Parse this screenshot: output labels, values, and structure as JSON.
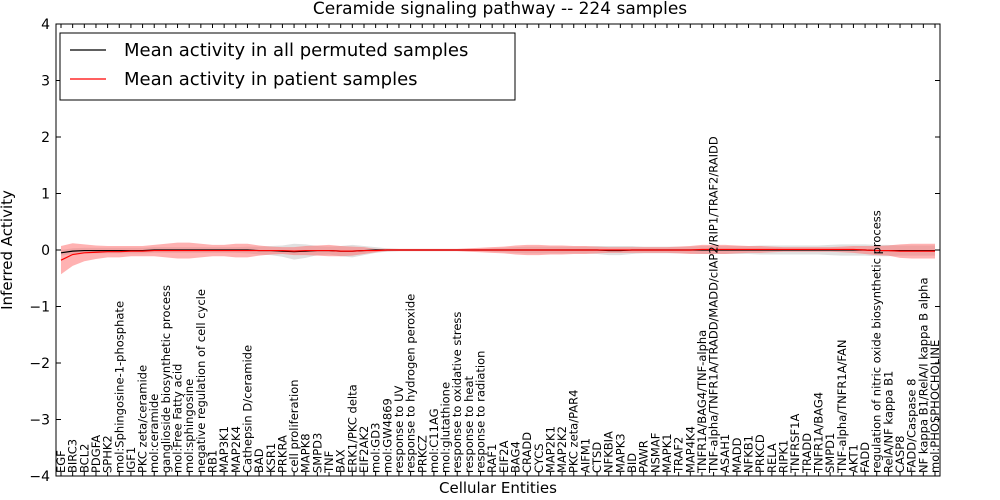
{
  "chart_data": {
    "type": "line",
    "title": "Ceramide signaling pathway -- 224 samples",
    "xlabel": "Cellular Entities",
    "ylabel": "Inferred Activity",
    "ylim": [
      -4,
      4
    ],
    "yticks": [
      -4,
      -3,
      -2,
      -1,
      0,
      1,
      2,
      3,
      4
    ],
    "grid": false,
    "legend_position": "top-left",
    "categories": [
      "EGF",
      "BIRC3",
      "BCL2",
      "PDGFA",
      "SPHK2",
      "mol:Sphingosine-1-phosphate",
      "IGF1",
      "PKC zeta/ceramide",
      "mol:ceramide",
      "ganglioside biosynthetic process",
      "mol:Free Fatty acid",
      "mol:sphingosine",
      "negative regulation of cell cycle",
      "RB1",
      "MAP3K1",
      "MAP2K4",
      "Cathepsin D/ceramide",
      "BAD",
      "KSR1",
      "PRKRA",
      "cell proliferation",
      "MAPK8",
      "SMPD3",
      "TNF",
      "BAX",
      "ERK1/PKC delta",
      "EIF2AK2",
      "mol:GD3",
      "mol:GW4869",
      "response to UV",
      "response to hydrogen peroxide",
      "PRKCZ",
      "mol:C11AG",
      "mol:glutathione",
      "response to oxidative stress",
      "response to heat",
      "response to radiation",
      "RAF1",
      "EIF2A",
      "BAG4",
      "CRADD",
      "CYCS",
      "MAP2K1",
      "MAP2K2",
      "PKC zeta/PAR4",
      "AIFM1",
      "CTSD",
      "NFKBIA",
      "MAPK3",
      "BID",
      "PAWR",
      "NSMAF",
      "MAPK1",
      "TRAF2",
      "MAP4K4",
      "TNFR1A/BAG4/TNF-alpha",
      "TNF-alpha/TNFR1A/TRADD/MADD/cIAP2/RIP1/TRAF2/RAIDD",
      "ASAH1",
      "MADD",
      "NFKB1",
      "PRKCD",
      "RELA",
      "RIPK1",
      "TNFRSF1A",
      "TRADD",
      "TNFR1A/BAG4",
      "SMPD1",
      "TNF-alpha/TNFR1A/FAN",
      "AKT1",
      "FADD",
      "regulation of nitric oxide biosynthetic process",
      "RelA/NF kappa B1",
      "CASP8",
      "FADD/Caspase 8",
      "NF kappa B1/RelA/I kappa B alpha",
      "mol:PHOSPHOCHOLINE"
    ],
    "series": [
      {
        "name": "Mean activity in all permuted samples",
        "color": "#000000",
        "band_color": "#bbbbbb",
        "values": [
          -0.05,
          -0.02,
          -0.01,
          -0.01,
          -0.01,
          -0.01,
          -0.01,
          -0.01,
          0,
          0,
          0,
          0,
          0,
          0,
          0,
          0,
          0,
          -0.01,
          -0.01,
          -0.02,
          -0.03,
          -0.02,
          -0.01,
          -0.01,
          -0.02,
          -0.02,
          -0.01,
          0,
          0,
          0,
          0,
          0,
          0,
          0,
          0,
          0,
          0,
          0,
          0,
          0,
          0,
          0,
          0,
          0,
          0,
          0,
          0,
          -0.01,
          -0.01,
          0,
          0,
          0,
          0,
          0,
          0,
          0,
          0,
          0,
          0,
          0,
          0,
          0,
          0,
          0,
          0,
          0,
          0,
          0,
          0,
          0,
          -0.01,
          -0.01,
          -0.01,
          -0.01,
          -0.01,
          -0.01
        ],
        "spread": [
          0.05,
          0.05,
          0.05,
          0.05,
          0.05,
          0.05,
          0.05,
          0.05,
          0.05,
          0.05,
          0.05,
          0.05,
          0.05,
          0.05,
          0.05,
          0.05,
          0.06,
          0.07,
          0.08,
          0.1,
          0.14,
          0.12,
          0.08,
          0.07,
          0.09,
          0.11,
          0.08,
          0.05,
          0.03,
          0.02,
          0.02,
          0.02,
          0.02,
          0.02,
          0.02,
          0.02,
          0.02,
          0.03,
          0.04,
          0.05,
          0.06,
          0.06,
          0.06,
          0.06,
          0.06,
          0.06,
          0.07,
          0.08,
          0.08,
          0.07,
          0.06,
          0.06,
          0.06,
          0.06,
          0.06,
          0.07,
          0.07,
          0.07,
          0.07,
          0.07,
          0.08,
          0.08,
          0.08,
          0.08,
          0.08,
          0.08,
          0.09,
          0.1,
          0.1,
          0.1,
          0.1,
          0.1,
          0.09,
          0.09,
          0.09,
          0.09
        ]
      },
      {
        "name": "Mean activity in patient samples",
        "color": "#ff0000",
        "band_color": "#ff6666",
        "values": [
          -0.18,
          -0.08,
          -0.05,
          -0.04,
          -0.03,
          -0.03,
          -0.02,
          -0.02,
          -0.01,
          -0.01,
          -0.01,
          -0.01,
          -0.01,
          -0.01,
          -0.01,
          -0.01,
          -0.01,
          -0.01,
          -0.01,
          -0.01,
          -0.02,
          -0.01,
          -0.01,
          -0.01,
          -0.02,
          -0.02,
          -0.01,
          -0.01,
          0,
          0,
          0,
          0,
          0,
          0,
          0,
          0,
          0,
          0,
          0,
          0,
          0,
          0,
          0,
          0,
          0,
          0,
          0,
          0,
          0,
          0,
          0,
          0,
          0,
          0,
          0,
          0.01,
          0.01,
          0.01,
          0.01,
          0.01,
          0.01,
          0.01,
          0.01,
          0.01,
          0.01,
          0.01,
          0.01,
          0.01,
          0.01,
          0,
          -0.01,
          -0.01,
          -0.02,
          -0.02,
          -0.02,
          -0.02
        ],
        "spread": [
          0.25,
          0.2,
          0.15,
          0.12,
          0.1,
          0.1,
          0.09,
          0.09,
          0.1,
          0.12,
          0.14,
          0.14,
          0.12,
          0.1,
          0.1,
          0.12,
          0.12,
          0.09,
          0.07,
          0.06,
          0.07,
          0.08,
          0.09,
          0.1,
          0.09,
          0.08,
          0.06,
          0.03,
          0.02,
          0.02,
          0.02,
          0.02,
          0.02,
          0.02,
          0.02,
          0.03,
          0.04,
          0.05,
          0.06,
          0.08,
          0.09,
          0.09,
          0.08,
          0.08,
          0.07,
          0.07,
          0.06,
          0.05,
          0.05,
          0.05,
          0.05,
          0.05,
          0.05,
          0.06,
          0.07,
          0.08,
          0.08,
          0.08,
          0.07,
          0.06,
          0.06,
          0.05,
          0.04,
          0.04,
          0.04,
          0.04,
          0.04,
          0.05,
          0.06,
          0.07,
          0.08,
          0.09,
          0.12,
          0.13,
          0.13,
          0.13
        ]
      }
    ]
  }
}
